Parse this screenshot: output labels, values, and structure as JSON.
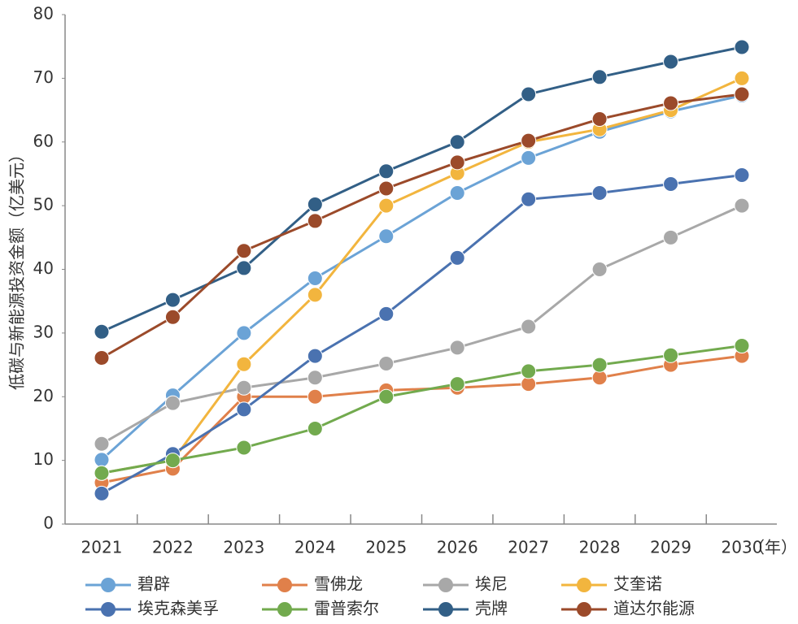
{
  "chart_data": {
    "type": "line",
    "y_label": "低碳与新能源投资金额（亿美元）",
    "x_label": "（年）",
    "categories": [
      "2021",
      "2022",
      "2023",
      "2024",
      "2025",
      "2026",
      "2027",
      "2028",
      "2029",
      "2030"
    ],
    "ylim": [
      0,
      80
    ],
    "yticks": [
      0,
      10,
      20,
      30,
      40,
      50,
      60,
      70,
      80
    ],
    "grid": false,
    "legend": "bottom",
    "series": [
      {
        "name": "碧辟",
        "color": "#6ba3d6",
        "values": [
          10.1,
          20.2,
          30,
          38.6,
          45.2,
          52,
          57.5,
          61.6,
          64.8,
          67.3
        ]
      },
      {
        "name": "雪佛龙",
        "color": "#e0804a",
        "values": [
          6.5,
          8.7,
          20,
          20,
          21,
          21.4,
          22,
          23,
          25,
          26.4
        ]
      },
      {
        "name": "埃尼",
        "color": "#a8a8a8",
        "values": [
          12.6,
          19,
          21.4,
          23,
          25.2,
          27.7,
          31,
          40,
          45,
          50
        ]
      },
      {
        "name": "艾奎诺",
        "color": "#f2b53e",
        "values": [
          8,
          10,
          25.1,
          36,
          50,
          55.1,
          60,
          62,
          65,
          70
        ]
      },
      {
        "name": "埃克森美孚",
        "color": "#4a72b0",
        "values": [
          4.8,
          11,
          18,
          26.4,
          33,
          41.8,
          51,
          52,
          53.4,
          54.8
        ]
      },
      {
        "name": "雷普索尔",
        "color": "#72aa4e",
        "values": [
          8,
          10,
          12,
          15,
          20,
          22,
          24,
          25,
          26.5,
          28
        ]
      },
      {
        "name": "壳牌",
        "color": "#325f86",
        "values": [
          30.2,
          35.2,
          40.2,
          50.2,
          55.4,
          60,
          67.5,
          70.2,
          72.6,
          74.9
        ]
      },
      {
        "name": "道达尔能源",
        "color": "#9b4a2a",
        "values": [
          26.1,
          32.5,
          42.9,
          47.6,
          52.7,
          56.8,
          60.2,
          63.6,
          66.1,
          67.5
        ]
      }
    ]
  }
}
